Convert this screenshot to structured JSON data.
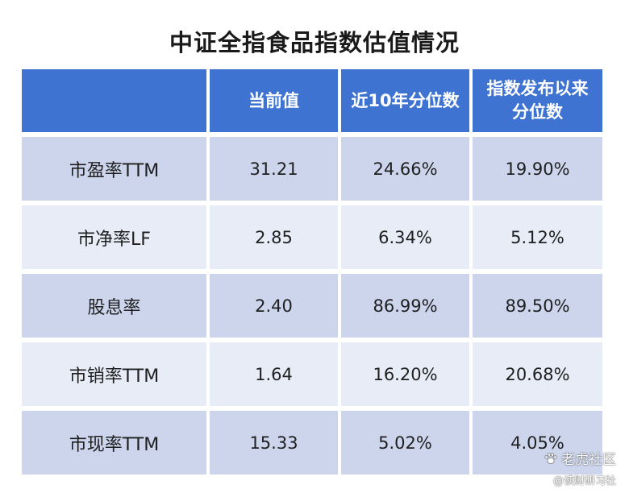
{
  "title": "中证全指食品指数估值情况",
  "columns": [
    "",
    "当前值",
    "近10年分位数",
    "指数发布以来分位数"
  ],
  "rows": [
    {
      "label": "市盈率TTM",
      "current": "31.21",
      "pct_10y": "24.66%",
      "pct_since": "19.90%"
    },
    {
      "label": "市净率LF",
      "current": "2.85",
      "pct_10y": "6.34%",
      "pct_since": "5.12%"
    },
    {
      "label": "股息率",
      "current": "2.40",
      "pct_10y": "86.99%",
      "pct_since": "89.50%"
    },
    {
      "label": "市销率TTM",
      "current": "1.64",
      "pct_10y": "16.20%",
      "pct_since": "20.68%"
    },
    {
      "label": "市现率TTM",
      "current": "15.33",
      "pct_10y": "5.02%",
      "pct_since": "4.05%"
    }
  ],
  "watermark": {
    "brand": "老虎社区",
    "handle": "@读财研习社",
    "icon": "paw-icon"
  },
  "colors": {
    "header_bg": "#3f73d1",
    "row_odd_bg": "#ccd5ec",
    "row_even_bg": "#e8ecf7"
  }
}
